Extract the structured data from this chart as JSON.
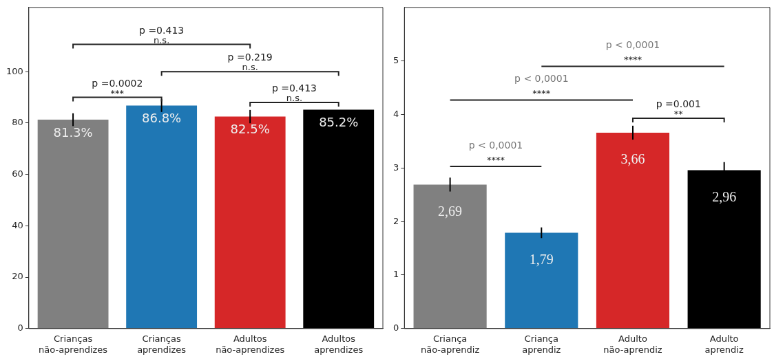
{
  "chart_data": [
    {
      "type": "bar",
      "categories": [
        "Crianças não-aprendizes",
        "Crianças aprendizes",
        "Adultos não-aprendizes",
        "Adultos aprendizes"
      ],
      "values": [
        81.3,
        86.8,
        82.5,
        85.2
      ],
      "colors": [
        "#808080",
        "#1f77b4",
        "#d62728",
        "#000000"
      ],
      "errors": [
        2.5,
        2.5,
        2.6,
        null
      ],
      "value_labels": [
        "81.3%",
        "86.8%",
        "82.5%",
        "85.2%"
      ],
      "ylim": [
        0,
        125
      ],
      "yticks": [
        0,
        20,
        40,
        60,
        80,
        100
      ],
      "grid": false,
      "annotations": [
        "p =0.413",
        "n.s.",
        "p =0.219",
        "n.s.",
        "p =0.0002",
        "***",
        "p =0.413",
        "n.s."
      ]
    },
    {
      "type": "bar",
      "categories": [
        "Criança não-aprendiz",
        "Criança aprendiz",
        "Adulto não-aprendiz",
        "Adulto aprendiz"
      ],
      "values": [
        2.69,
        1.79,
        3.66,
        2.96
      ],
      "colors": [
        "#808080",
        "#1f77b4",
        "#d62728",
        "#000000"
      ],
      "errors": [
        0.13,
        0.1,
        0.13,
        0.15
      ],
      "value_labels": [
        "2,69",
        "1,79",
        "3,66",
        "2,96"
      ],
      "ylim": [
        0,
        6
      ],
      "yticks": [
        0,
        1,
        2,
        3,
        4,
        5
      ],
      "grid": false,
      "annotations": [
        "p < 0,0001",
        "****",
        "p < 0,0001",
        "****",
        "p =0.001",
        "**",
        "p < 0,0001",
        "****"
      ]
    }
  ]
}
